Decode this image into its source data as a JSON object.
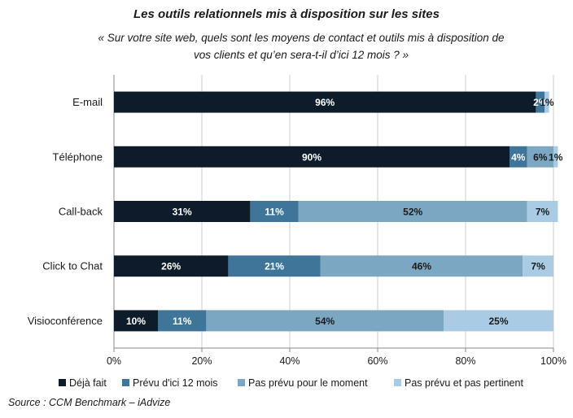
{
  "chart_data": {
    "type": "bar",
    "orientation": "horizontal",
    "stacked": true,
    "title": "Les outils relationnels mis à disposition sur les sites",
    "subtitle": "« Sur votre site web, quels sont les moyens de contact et outils mis à disposition de vos clients et qu’en sera-t-il d’ici 12 mois ? »",
    "source": "Source : CCM Benchmark – iAdvize",
    "categories": [
      "E-mail",
      "Téléphone",
      "Call-back",
      "Click to Chat",
      "Visioconférence"
    ],
    "series": [
      {
        "name": "Déjà fait",
        "color": "#0d1b2a",
        "label_color": "#ffffff",
        "values": [
          96,
          90,
          31,
          26,
          10
        ],
        "labels": [
          "96%",
          "90%",
          "31%",
          "26%",
          "10%"
        ]
      },
      {
        "name": "Prévu d'ici 12 mois",
        "color": "#3e7599",
        "label_color": "#ffffff",
        "values": [
          2,
          4,
          11,
          21,
          11
        ],
        "labels": [
          "2%",
          "4%",
          "11%",
          "21%",
          "11%"
        ]
      },
      {
        "name": "Pas prévu pour le moment",
        "color": "#7ba7c3",
        "label_color": "#1a1a1a",
        "values": [
          0,
          6,
          52,
          46,
          54
        ],
        "labels": [
          "",
          "6%",
          "52%",
          "46%",
          "54%"
        ]
      },
      {
        "name": "Pas prévu et pas pertinent",
        "color": "#a9cce4",
        "label_color": "#1a1a1a",
        "values": [
          1,
          1,
          7,
          7,
          25
        ],
        "labels": [
          "1%",
          "1%",
          "7%",
          "7%",
          "25%"
        ]
      }
    ],
    "xlim": [
      0,
      100
    ],
    "x_ticks": [
      "0%",
      "20%",
      "40%",
      "60%",
      "80%",
      "100%"
    ],
    "grid": "vertical",
    "legend_position": "bottom"
  }
}
